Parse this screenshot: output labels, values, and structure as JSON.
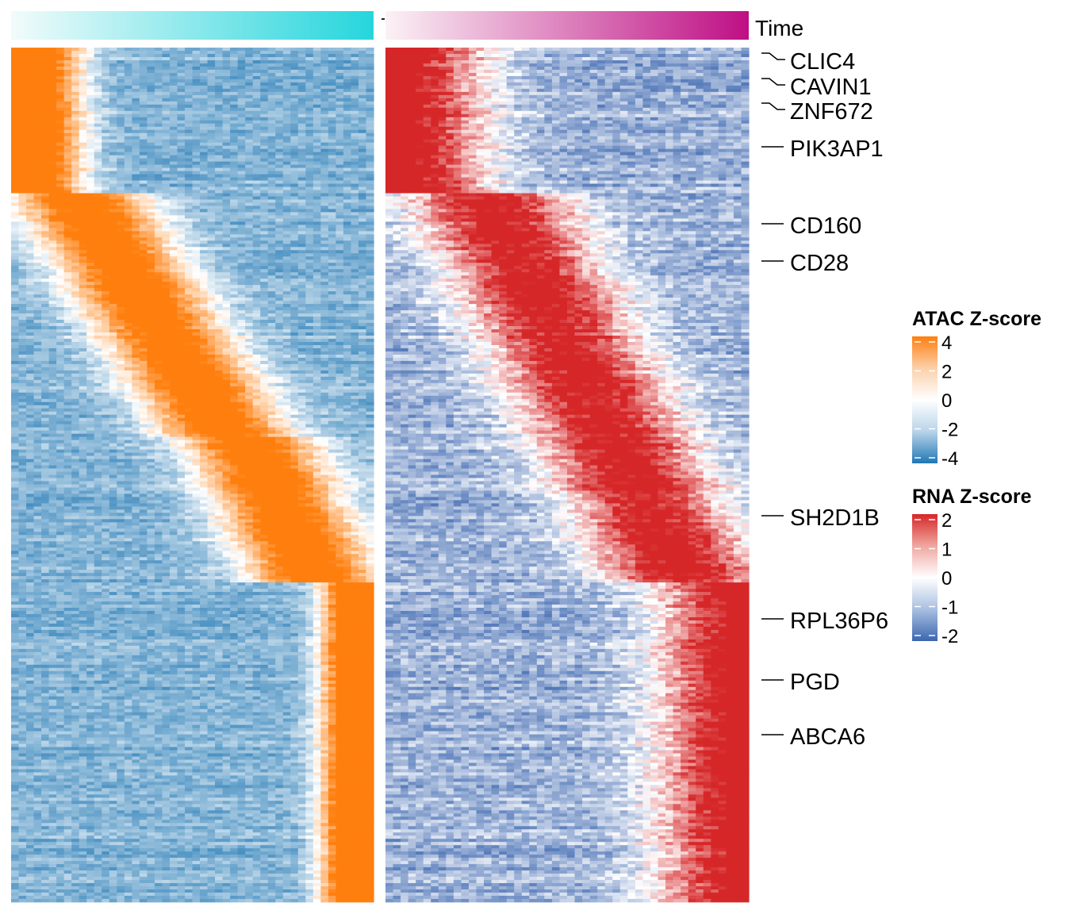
{
  "chart_data": {
    "type": "heatmap",
    "description_free": true,
    "annotation": {
      "label": "Time",
      "atac_gradient": [
        "#f2fbfb",
        "#25d6dc"
      ],
      "rna_gradient": [
        "#fbf2f5",
        "#be0f84"
      ]
    },
    "genes": [
      "CLIC4",
      "CAVIN1",
      "ZNF672",
      "PIK3AP1",
      "CD160",
      "CD28",
      "SH2D1B",
      "RPL36P6",
      "PGD",
      "ABCA6"
    ],
    "legends": [
      {
        "title": "ATAC Z-score",
        "ticks": [
          "4",
          "2",
          "0",
          "-2",
          "-4"
        ],
        "values": [
          4,
          2,
          0,
          -2,
          -4
        ],
        "colors": [
          "#ff7f0e",
          "#fbd0a9",
          "#ffffff",
          "#b9d3e9",
          "#1f77b4"
        ]
      },
      {
        "title": "RNA Z-score",
        "ticks": [
          "2",
          "1",
          "0",
          "-1",
          "-2"
        ],
        "values": [
          2,
          1,
          0,
          -1,
          -2
        ],
        "colors": [
          "#d62728",
          "#f0a6a0",
          "#ffffff",
          "#a9bfe0",
          "#3b66b0"
        ]
      }
    ],
    "atac": {
      "low": "#1f77b4",
      "mid": "#ffffff",
      "high": "#ff7f0e",
      "clusters": [
        {
          "rows_fraction": 0.17,
          "peak_start": 0.0,
          "peak_end": 0.2
        },
        {
          "rows_fraction": 0.285,
          "peak_start": 0.1,
          "peak_end": 0.7
        },
        {
          "rows_fraction": 0.17,
          "peak_start": 0.55,
          "peak_end": 1.0
        },
        {
          "rows_fraction": 0.375,
          "peak_start": 0.85,
          "peak_end": 1.0
        }
      ]
    },
    "rna": {
      "low": "#3b66b0",
      "mid": "#ffffff",
      "high": "#d62728"
    }
  }
}
